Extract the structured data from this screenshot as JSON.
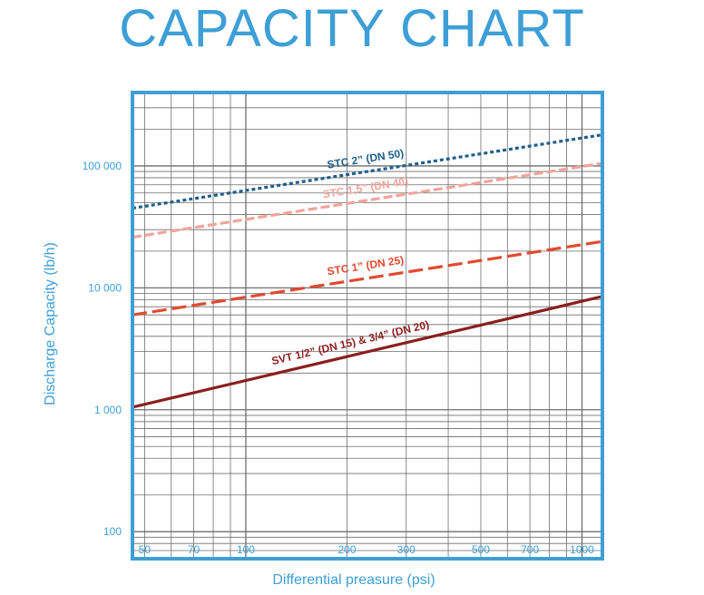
{
  "chart_data": {
    "type": "line",
    "title": "CAPACITY CHART",
    "xlabel": "Differential preasure (psi)",
    "ylabel": "Discharge Capacity (lb/h)",
    "xscale": "log",
    "yscale": "log",
    "xlim": [
      46,
      1150
    ],
    "ylim": [
      60,
      400000
    ],
    "x_ticks": [
      {
        "value": 50,
        "label": "50"
      },
      {
        "value": 70,
        "label": "70"
      },
      {
        "value": 100,
        "label": "100"
      },
      {
        "value": 200,
        "label": "200"
      },
      {
        "value": 300,
        "label": "300"
      },
      {
        "value": 500,
        "label": "500"
      },
      {
        "value": 700,
        "label": "700"
      },
      {
        "value": 1000,
        "label": "1000"
      }
    ],
    "y_ticks": [
      {
        "value": 100,
        "label": "100"
      },
      {
        "value": 1000,
        "label": "1 000"
      },
      {
        "value": 10000,
        "label": "10 000"
      },
      {
        "value": 100000,
        "label": "100 000"
      }
    ],
    "grid": true,
    "series": [
      {
        "name": "STC 2” (DN 50)",
        "color": "#1f5f8b",
        "dash": "dotted",
        "x": [
          46,
          1150
        ],
        "y": [
          45000,
          180000
        ]
      },
      {
        "name": "STC 1,5” (DN 40)",
        "color": "#f2a49a",
        "dash": "dashed",
        "x": [
          46,
          1150
        ],
        "y": [
          26000,
          105000
        ]
      },
      {
        "name": "STC 1” (DN 25)",
        "color": "#e04a2f",
        "dash": "longdash",
        "x": [
          46,
          1150
        ],
        "y": [
          6000,
          24000
        ]
      },
      {
        "name": "SVT 1/2” (DN 15) & 3/4” (DN 20)",
        "color": "#8b1e1e",
        "dash": "solid",
        "x": [
          46,
          1150
        ],
        "y": [
          1050,
          8500
        ]
      }
    ],
    "colors": {
      "frame": "#3d9fd6",
      "grid": "#6e6e6e",
      "text": "#3d9fd6"
    }
  }
}
